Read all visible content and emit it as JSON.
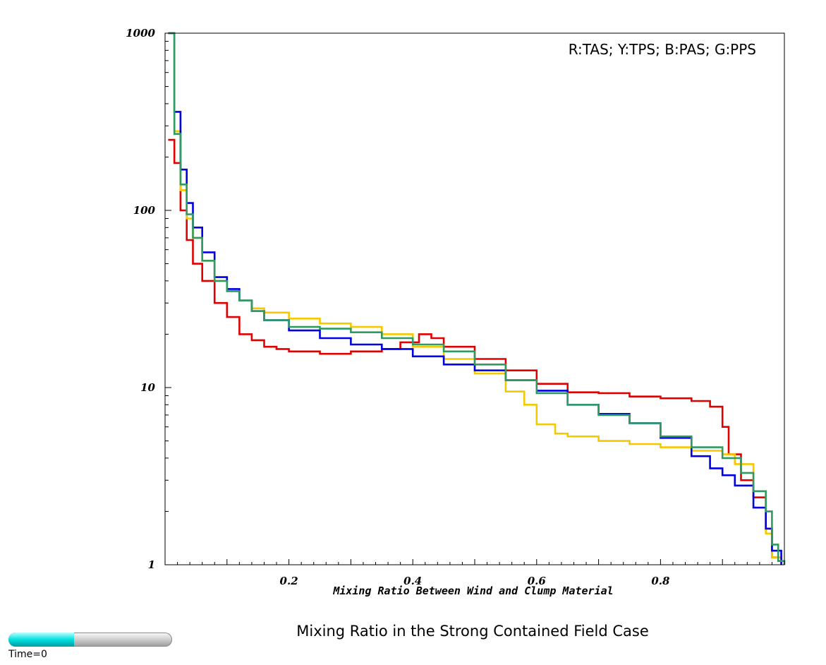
{
  "chart_data": {
    "type": "line",
    "title": "Mixing Ratio in the Strong Contained Field Case",
    "xlabel": "Mixing Ratio Between Wind and Clump Material",
    "ylabel": "",
    "xlim": [
      0,
      1
    ],
    "ylim": [
      1,
      1000
    ],
    "yscale": "log",
    "step": true,
    "x_ticks": [
      "0.2",
      "0.4",
      "0.6",
      "0.8"
    ],
    "y_ticks": [
      "1",
      "10",
      "100",
      "1000"
    ],
    "legend": "R:TAS; Y:TPS; B:PAS; G:PPS",
    "legend_position": "top-right",
    "grid": false,
    "series": [
      {
        "color": "#e00000",
        "x": [
          0.005,
          0.015,
          0.025,
          0.035,
          0.045,
          0.06,
          0.08,
          0.1,
          0.12,
          0.14,
          0.16,
          0.18,
          0.2,
          0.25,
          0.3,
          0.35,
          0.38,
          0.41,
          0.43,
          0.45,
          0.5,
          0.55,
          0.6,
          0.65,
          0.7,
          0.75,
          0.8,
          0.85,
          0.88,
          0.9,
          0.91,
          0.93,
          0.95,
          0.97,
          0.98,
          0.995
        ],
        "y": [
          250,
          185,
          100,
          68,
          50,
          40,
          30,
          25,
          20,
          18.5,
          17,
          16.5,
          16,
          15.5,
          16,
          16.5,
          18,
          20,
          19,
          17,
          14.5,
          12.5,
          10.5,
          9.4,
          9.3,
          8.9,
          8.7,
          8.4,
          7.8,
          6.0,
          4.2,
          3.0,
          2.4,
          1.6,
          1.1,
          1.0
        ]
      },
      {
        "color": "#f5c800",
        "x": [
          0.005,
          0.015,
          0.025,
          0.035,
          0.045,
          0.06,
          0.08,
          0.1,
          0.12,
          0.14,
          0.16,
          0.2,
          0.25,
          0.3,
          0.35,
          0.4,
          0.45,
          0.5,
          0.55,
          0.58,
          0.6,
          0.63,
          0.65,
          0.7,
          0.75,
          0.8,
          0.85,
          0.9,
          0.92,
          0.95,
          0.97,
          0.98,
          0.995
        ],
        "y": [
          1000,
          280,
          130,
          90,
          70,
          52,
          40,
          35,
          31,
          28,
          26.5,
          24.5,
          23,
          22,
          20,
          17,
          14.5,
          12,
          9.5,
          8,
          6.2,
          5.5,
          5.3,
          5.0,
          4.8,
          4.6,
          4.4,
          4.2,
          3.7,
          2.6,
          1.5,
          1.1,
          1.0
        ]
      },
      {
        "color": "#0000e0",
        "x": [
          0.005,
          0.015,
          0.025,
          0.035,
          0.045,
          0.06,
          0.08,
          0.1,
          0.12,
          0.14,
          0.16,
          0.2,
          0.25,
          0.3,
          0.35,
          0.4,
          0.45,
          0.5,
          0.55,
          0.6,
          0.65,
          0.7,
          0.75,
          0.8,
          0.85,
          0.88,
          0.9,
          0.92,
          0.95,
          0.97,
          0.98,
          0.995
        ],
        "y": [
          1000,
          360,
          170,
          110,
          80,
          58,
          42,
          36,
          31,
          27,
          24,
          21,
          19,
          17.5,
          16.5,
          15,
          13.5,
          12.5,
          11,
          9.6,
          8,
          7.1,
          6.3,
          5.2,
          4.1,
          3.5,
          3.2,
          2.8,
          2.1,
          1.6,
          1.2,
          1.0
        ]
      },
      {
        "color": "#2f9a62",
        "x": [
          0.005,
          0.015,
          0.025,
          0.035,
          0.045,
          0.06,
          0.08,
          0.1,
          0.12,
          0.14,
          0.16,
          0.2,
          0.25,
          0.3,
          0.35,
          0.4,
          0.45,
          0.5,
          0.55,
          0.6,
          0.65,
          0.7,
          0.75,
          0.8,
          0.85,
          0.9,
          0.93,
          0.95,
          0.97,
          0.98,
          0.99,
          1.0
        ],
        "y": [
          1000,
          270,
          140,
          95,
          70,
          52,
          40,
          35,
          31,
          27,
          24,
          22,
          21.5,
          20.5,
          19,
          17.5,
          16,
          13.5,
          11,
          9.3,
          8,
          7,
          6.3,
          5.3,
          4.6,
          4.0,
          3.3,
          2.6,
          2.0,
          1.3,
          1.05,
          1.0
        ]
      }
    ]
  },
  "timebar": {
    "label": "Time=0",
    "progress": 0.4
  }
}
